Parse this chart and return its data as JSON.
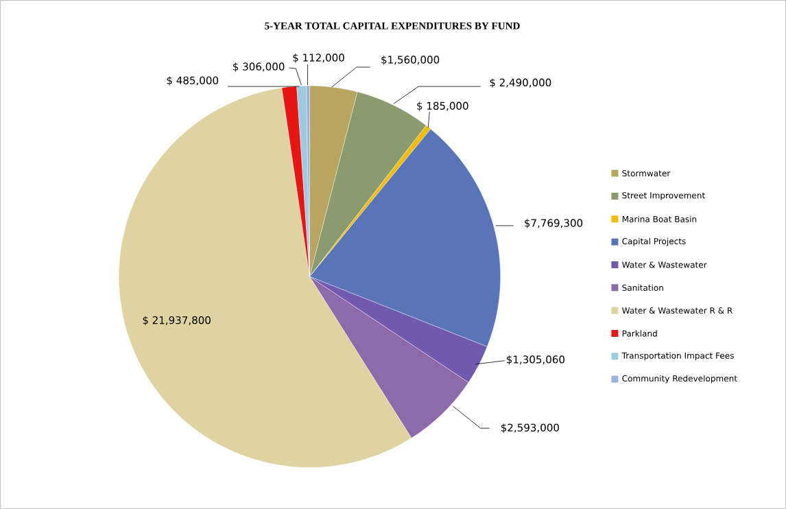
{
  "chart_data": {
    "type": "pie",
    "title": "5-YEAR TOTAL CAPITAL EXPENDITURES BY FUND",
    "categories": [
      "Stormwater",
      "Street Improvement",
      "Marina Boat Basin",
      "Capital Projects",
      "Water & Wastewater",
      "Sanitation",
      "Water & Wastewater R & R",
      "Parkland",
      "Transportation Impact Fees",
      "Community Redevelopment"
    ],
    "values": [
      1560000,
      2490000,
      185000,
      7769300,
      1305060,
      2593000,
      21937800,
      485000,
      306000,
      112000
    ],
    "value_labels": [
      "$1,560,000",
      "$ 2,490,000",
      "$ 185,000",
      "$7,769,300",
      "$1,305,060",
      "$2,593,000",
      "$ 21,937,800",
      "$ 485,000",
      "$ 306,000",
      "$ 112,000"
    ],
    "colors": [
      "#b8a55f",
      "#8b9b70",
      "#f2bd0a",
      "#5975b8",
      "#7159b0",
      "#8f6aab",
      "#dfd3a1",
      "#e81515",
      "#9ecae1",
      "#9fb2de"
    ],
    "legend": "right"
  }
}
